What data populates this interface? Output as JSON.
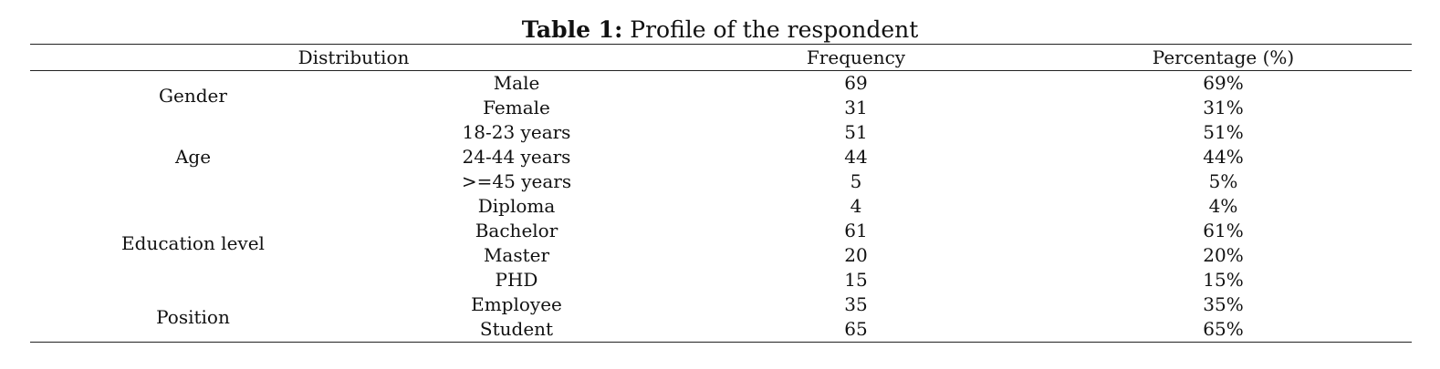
{
  "caption": {
    "label": "Table 1:",
    "text": " Profile of the respondent"
  },
  "table": {
    "headers": {
      "distribution": "Distribution",
      "frequency": "Frequency",
      "percentage": "Percentage (%)"
    },
    "groups": [
      {
        "name": "Gender",
        "rows": [
          {
            "category": "Male",
            "frequency": "69",
            "percentage": "69%"
          },
          {
            "category": "Female",
            "frequency": "31",
            "percentage": "31%"
          }
        ]
      },
      {
        "name": "Age",
        "rows": [
          {
            "category": "18-23 years",
            "frequency": "51",
            "percentage": "51%"
          },
          {
            "category": "24-44 years",
            "frequency": "44",
            "percentage": "44%"
          },
          {
            "category": ">=45 years",
            "frequency": "5",
            "percentage": "5%"
          }
        ]
      },
      {
        "name": "Education level",
        "rows": [
          {
            "category": "Diploma",
            "frequency": "4",
            "percentage": "4%"
          },
          {
            "category": "Bachelor",
            "frequency": "61",
            "percentage": "61%"
          },
          {
            "category": "Master",
            "frequency": "20",
            "percentage": "20%"
          },
          {
            "category": "PHD",
            "frequency": "15",
            "percentage": "15%"
          }
        ]
      },
      {
        "name": "Position",
        "rows": [
          {
            "category": "Employee",
            "frequency": "35",
            "percentage": "35%"
          },
          {
            "category": "Student",
            "frequency": "65",
            "percentage": "65%"
          }
        ]
      }
    ]
  }
}
